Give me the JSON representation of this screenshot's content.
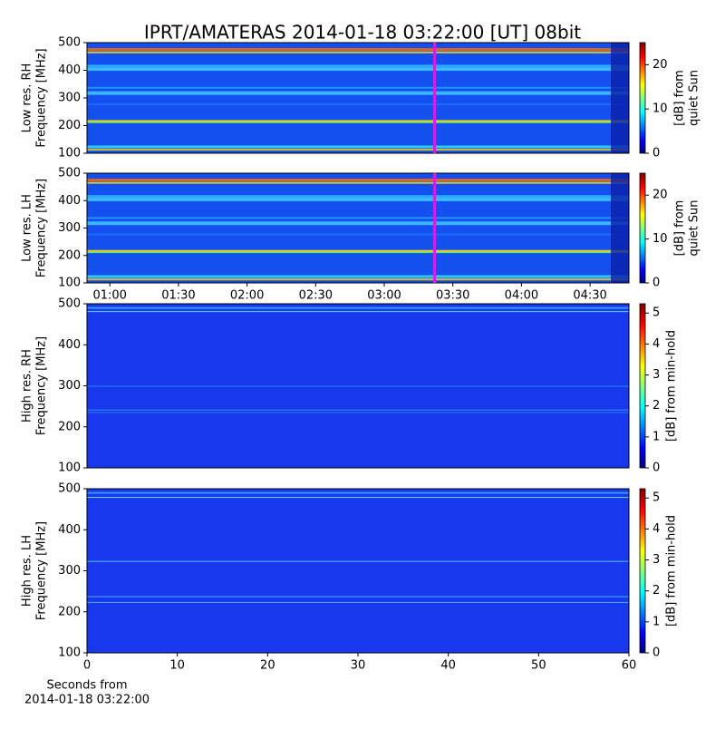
{
  "title": "IPRT/AMATERAS 2014-01-18 03:22:00 [UT]   08bit",
  "chart_data": [
    {
      "type": "spectrogram",
      "ylabel": [
        "Low res. RH",
        "Frequency [MHz]"
      ],
      "ylim": [
        100,
        500
      ],
      "yticks": [
        100,
        200,
        300,
        400,
        500
      ],
      "xlim": [
        "00:50",
        "04:47"
      ],
      "cursor": {
        "x": "03:22",
        "color": "#d21fe8"
      },
      "colorbar": {
        "label": [
          "[dB] from",
          "quiet Sun"
        ],
        "lim": [
          0,
          25
        ],
        "ticks": [
          0,
          10,
          20
        ]
      }
    },
    {
      "type": "spectrogram",
      "ylabel": [
        "Low res. LH",
        "Frequency [MHz]"
      ],
      "ylim": [
        100,
        500
      ],
      "yticks": [
        100,
        200,
        300,
        400,
        500
      ],
      "xlim": [
        "00:50",
        "04:47"
      ],
      "xticks": [
        "01:00",
        "01:30",
        "02:00",
        "02:30",
        "03:00",
        "03:30",
        "04:00",
        "04:30"
      ],
      "cursor": {
        "x": "03:22",
        "color": "#d21fe8"
      },
      "colorbar": {
        "label": [
          "[dB] from",
          "quiet Sun"
        ],
        "lim": [
          0,
          25
        ],
        "ticks": [
          0,
          10,
          20
        ]
      }
    },
    {
      "type": "spectrogram",
      "ylabel": [
        "High res. RH",
        "Frequency [MHz]"
      ],
      "ylim": [
        100,
        500
      ],
      "yticks": [
        100,
        200,
        300,
        400,
        500
      ],
      "xlim": [
        0,
        60
      ],
      "colorbar": {
        "label": [
          "[dB] from min-hold"
        ],
        "lim": [
          0,
          5.3
        ],
        "ticks": [
          0,
          1,
          2,
          3,
          4,
          5
        ]
      }
    },
    {
      "type": "spectrogram",
      "ylabel": [
        "High res. LH",
        "Frequency [MHz]"
      ],
      "ylim": [
        100,
        500
      ],
      "yticks": [
        100,
        200,
        300,
        400,
        500
      ],
      "xlim": [
        0,
        60
      ],
      "xticks": [
        0,
        10,
        20,
        30,
        40,
        50,
        60
      ],
      "xlabel": [
        "Seconds from",
        "2014-01-18 03:22:00"
      ],
      "colorbar": {
        "label": [
          "[dB] from min-hold"
        ],
        "lim": [
          0,
          5.3
        ],
        "ticks": [
          0,
          1,
          2,
          3,
          4,
          5
        ]
      }
    }
  ]
}
